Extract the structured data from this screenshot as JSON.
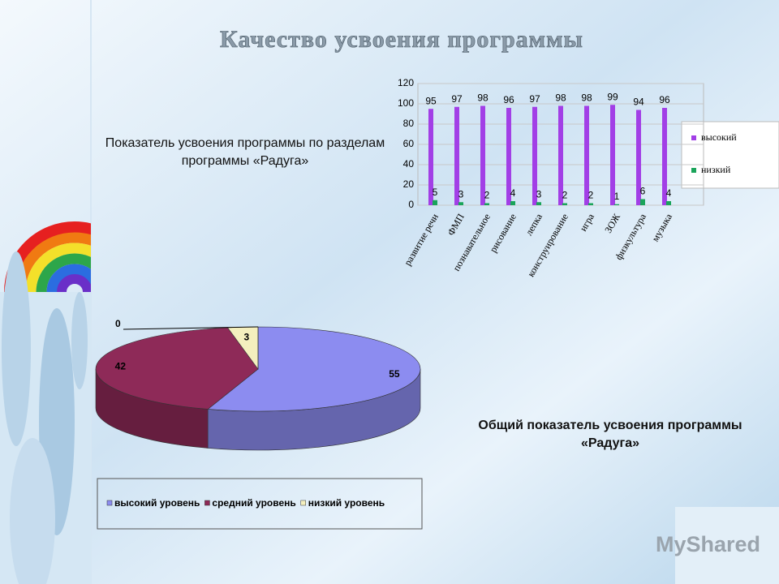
{
  "title": "Качество усвоения программы",
  "watermark": "MyShared",
  "chart_data": [
    {
      "type": "bar",
      "title": "Показатель усвоения программы по разделам программы «Радуга»",
      "categories": [
        "развитие речи",
        "ФМП",
        "познавательное",
        "рисование",
        "лепка",
        "конструирование",
        "игра",
        "ЗОЖ",
        "физкультура",
        "музыка"
      ],
      "series": [
        {
          "name": "высокий",
          "color": "#a23fe6",
          "values": [
            95,
            97,
            98,
            96,
            97,
            98,
            98,
            99,
            94,
            96
          ]
        },
        {
          "name": "низкий",
          "color": "#1aa45a",
          "values": [
            5,
            3,
            2,
            4,
            3,
            2,
            2,
            1,
            6,
            4
          ]
        }
      ],
      "ylim": [
        0,
        120
      ],
      "yticks": [
        0,
        20,
        40,
        60,
        80,
        100,
        120
      ],
      "grid": true,
      "legend": "right"
    },
    {
      "type": "pie",
      "title": "Общий показатель усвоения программы «Радуга»",
      "categories": [
        "высокий уровень",
        "средний уровень",
        "низкий уровень",
        null
      ],
      "values": [
        55,
        42,
        3,
        0
      ],
      "colors": [
        "#8c8cf0",
        "#8e2a58",
        "#f4efbe",
        "#4a4a4a"
      ],
      "legend": "bottom"
    }
  ]
}
